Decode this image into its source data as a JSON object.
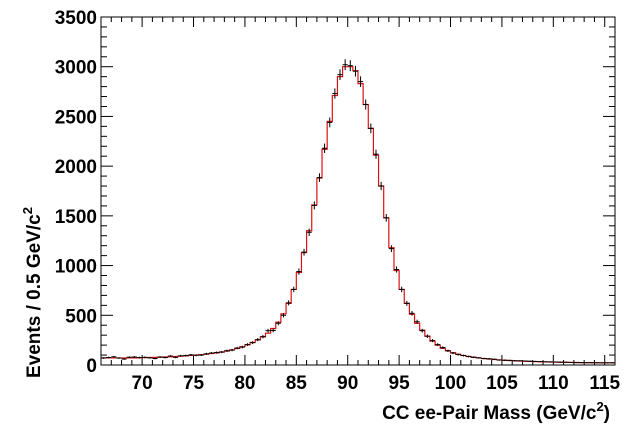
{
  "chart_data": {
    "type": "histogram",
    "xlabel": "CC ee-Pair Mass (GeV/c",
    "xlabel_sup": "2",
    "xlabel_close": ")",
    "ylabel": "Events / 0.5 GeV/c",
    "ylabel_sup": "2",
    "xlim": [
      66,
      116
    ],
    "ylim": [
      0,
      3500
    ],
    "bin_width": 0.5,
    "x_ticks": [
      70,
      75,
      80,
      85,
      90,
      95,
      100,
      105,
      110,
      115
    ],
    "y_ticks": [
      0,
      500,
      1000,
      1500,
      2000,
      2500,
      3000,
      3500
    ],
    "grid": false,
    "legend": "none",
    "series": [
      {
        "kind": "data-points",
        "color": "#000000"
      },
      {
        "kind": "fit-histogram",
        "color": "#dd1111"
      }
    ],
    "x": [
      66.25,
      66.75,
      67.25,
      67.75,
      68.25,
      68.75,
      69.25,
      69.75,
      70.25,
      70.75,
      71.25,
      71.75,
      72.25,
      72.75,
      73.25,
      73.75,
      74.25,
      74.75,
      75.25,
      75.75,
      76.25,
      76.75,
      77.25,
      77.75,
      78.25,
      78.75,
      79.25,
      79.75,
      80.25,
      80.75,
      81.25,
      81.75,
      82.25,
      82.75,
      83.25,
      83.75,
      84.25,
      84.75,
      85.25,
      85.75,
      86.25,
      86.75,
      87.25,
      87.75,
      88.25,
      88.75,
      89.25,
      89.75,
      90.25,
      90.75,
      91.25,
      91.75,
      92.25,
      92.75,
      93.25,
      93.75,
      94.25,
      94.75,
      95.25,
      95.75,
      96.25,
      96.75,
      97.25,
      97.75,
      98.25,
      98.75,
      99.25,
      99.75,
      100.25,
      100.75,
      101.25,
      101.75,
      102.25,
      102.75,
      103.25,
      103.75,
      104.25,
      104.75,
      105.25,
      105.75,
      106.25,
      106.75,
      107.25,
      107.75,
      108.25,
      108.75,
      109.25,
      109.75,
      110.25,
      110.75,
      111.25,
      111.75,
      112.25,
      112.75,
      113.25,
      113.75,
      114.25,
      114.75,
      115.25,
      115.75
    ],
    "fit_values": [
      72,
      72,
      71,
      71,
      71,
      72,
      72,
      73,
      74,
      76,
      77,
      79,
      81,
      83,
      86,
      89,
      92,
      96,
      100,
      104,
      109,
      115,
      122,
      131,
      141,
      153,
      167,
      184,
      204,
      226,
      252,
      283,
      320,
      367,
      430,
      515,
      620,
      760,
      930,
      1130,
      1350,
      1610,
      1880,
      2170,
      2450,
      2710,
      2900,
      3000,
      3000,
      2960,
      2830,
      2620,
      2380,
      2110,
      1800,
      1480,
      1180,
      950,
      760,
      620,
      510,
      420,
      350,
      290,
      240,
      200,
      168,
      143,
      123,
      108,
      96,
      86,
      78,
      71,
      65,
      60,
      55,
      51,
      48,
      45,
      42,
      40,
      38,
      36,
      34,
      32,
      31,
      30,
      29,
      28,
      27,
      26,
      25,
      24,
      24,
      23,
      23,
      22,
      22,
      22
    ],
    "data_values": [
      70,
      75,
      82,
      70,
      60,
      78,
      80,
      74,
      77,
      72,
      65,
      80,
      75,
      90,
      77,
      92,
      95,
      102,
      98,
      100,
      112,
      120,
      125,
      130,
      143,
      150,
      170,
      180,
      205,
      225,
      255,
      285,
      345,
      348,
      420,
      500,
      625,
      760,
      940,
      1135,
      1335,
      1605,
      1885,
      2180,
      2440,
      2730,
      2920,
      3020,
      3010,
      2955,
      2850,
      2620,
      2380,
      2120,
      1800,
      1480,
      1170,
      960,
      760,
      620,
      520,
      435,
      345,
      290,
      245,
      205,
      175,
      143,
      120,
      105,
      95,
      85,
      78,
      72,
      65,
      62,
      58,
      50,
      48,
      46,
      43,
      42,
      40,
      38,
      36,
      34,
      32,
      31,
      30,
      29,
      28,
      25,
      24,
      24,
      23,
      23,
      22,
      22,
      22,
      22
    ],
    "data_errors": [
      8,
      9,
      9,
      8,
      8,
      9,
      9,
      9,
      9,
      8,
      8,
      9,
      9,
      9,
      9,
      10,
      10,
      10,
      10,
      10,
      11,
      11,
      11,
      11,
      12,
      12,
      13,
      13,
      14,
      15,
      16,
      17,
      19,
      19,
      20,
      22,
      25,
      28,
      31,
      34,
      37,
      40,
      43,
      47,
      49,
      52,
      54,
      55,
      55,
      54,
      53,
      51,
      49,
      46,
      42,
      38,
      34,
      31,
      28,
      25,
      23,
      21,
      19,
      17,
      16,
      14,
      13,
      12,
      11,
      10,
      10,
      9,
      9,
      8,
      8,
      8,
      8,
      7,
      7,
      7,
      7,
      6,
      6,
      6,
      6,
      6,
      6,
      6,
      5,
      5,
      5,
      5,
      5,
      5,
      5,
      5,
      5,
      5,
      5,
      5
    ]
  }
}
